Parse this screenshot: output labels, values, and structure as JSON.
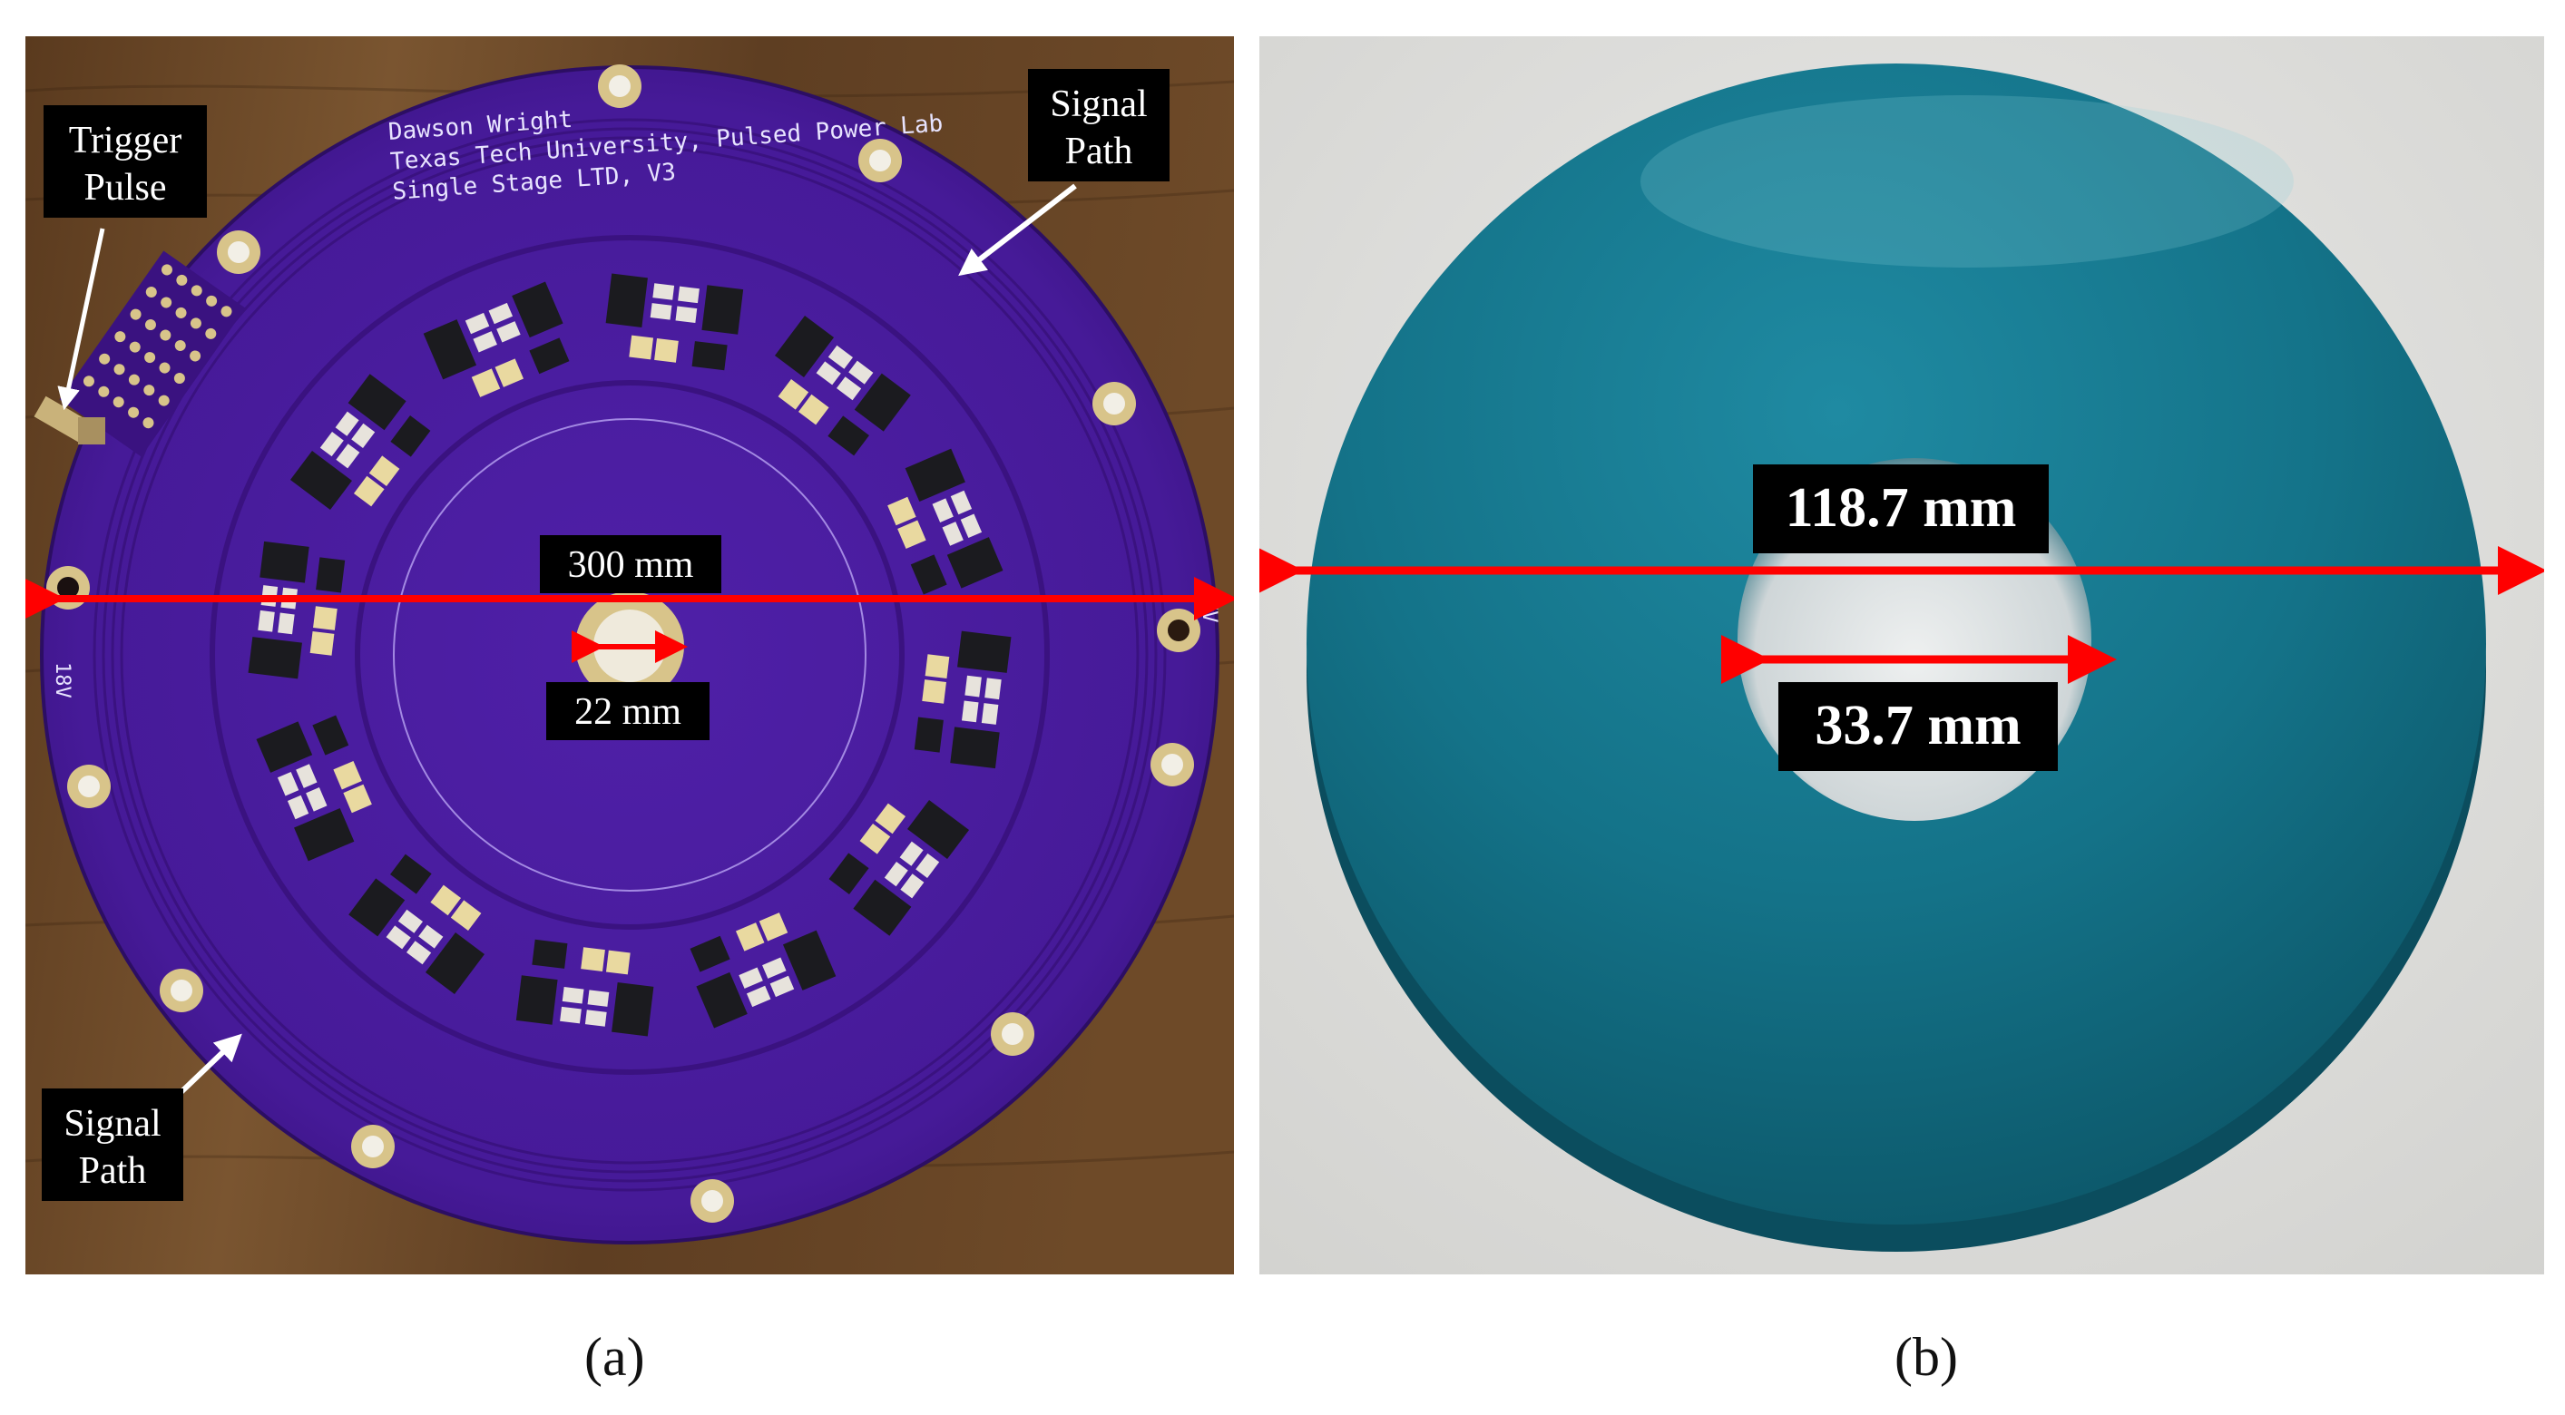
{
  "figure": {
    "panel_a": {
      "caption": "(a)",
      "silkscreen": {
        "line1": "Dawson Wright",
        "line2": "Texas Tech University, Pulsed Power Lab",
        "line3": "Single Stage LTD, V3",
        "left_edge": "18V",
        "right_edge": "HV"
      },
      "labels": {
        "trigger_line1": "Trigger",
        "trigger_line2": "Pulse",
        "signal_top_line1": "Signal",
        "signal_top_line2": "Path",
        "signal_bottom_line1": "Signal",
        "signal_bottom_line2": "Path",
        "board_diameter": "300 mm",
        "hole_diameter": "22 mm"
      }
    },
    "panel_b": {
      "caption": "(b)",
      "labels": {
        "outer_diameter": "118.7 mm",
        "inner_diameter": "33.7 mm"
      }
    },
    "colors": {
      "pcb": "#4a1c9e",
      "wood": "#6b4a2a",
      "core": "#136f86",
      "dimension_arrow": "#ff0000",
      "label_bg": "#000000",
      "label_text": "#ffffff"
    }
  }
}
